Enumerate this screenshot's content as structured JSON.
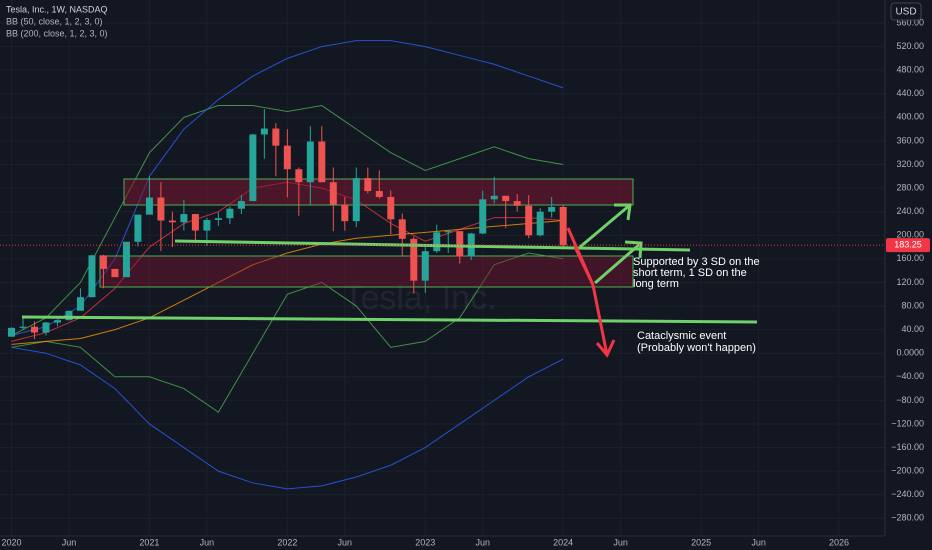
{
  "chart_data": {
    "type": "candlestick",
    "title": "Tesla, Inc., 1W, NASDAQ",
    "currency": "USD",
    "x": [
      "2020-01",
      "2020-02",
      "2020-03",
      "2020-04",
      "2020-05",
      "2020-06",
      "2020-07",
      "2020-08",
      "2020-09",
      "2020-10",
      "2020-11",
      "2020-12",
      "2021-01",
      "2021-02",
      "2021-03",
      "2021-04",
      "2021-05",
      "2021-06",
      "2021-07",
      "2021-08",
      "2021-09",
      "2021-10",
      "2021-11",
      "2021-12",
      "2022-01",
      "2022-02",
      "2022-03",
      "2022-04",
      "2022-05",
      "2022-06",
      "2022-07",
      "2022-08",
      "2022-09",
      "2022-10",
      "2022-11",
      "2022-12",
      "2023-01",
      "2023-02",
      "2023-03",
      "2023-04",
      "2023-05",
      "2023-06",
      "2023-07",
      "2023-08",
      "2023-09",
      "2023-10",
      "2023-11",
      "2023-12",
      "2024-01"
    ],
    "open": [
      28,
      43,
      45,
      35,
      52,
      56,
      72,
      95,
      166,
      143,
      129,
      189,
      235,
      264,
      225,
      222,
      236,
      208,
      226,
      229,
      245,
      258,
      371,
      381,
      352,
      312,
      290,
      359,
      290,
      252,
      224,
      297,
      275,
      265,
      227,
      194,
      123,
      173,
      205,
      207,
      164,
      203,
      261,
      267,
      258,
      250,
      200,
      240,
      248
    ],
    "high": [
      44,
      60,
      54,
      53,
      56,
      72,
      110,
      167,
      167,
      143,
      189,
      235,
      300,
      290,
      240,
      260,
      236,
      230,
      239,
      249,
      268,
      372,
      414,
      390,
      380,
      315,
      385,
      385,
      315,
      265,
      315,
      315,
      310,
      276,
      237,
      198,
      180,
      218,
      208,
      202,
      204,
      276,
      299,
      267,
      270,
      268,
      246,
      265,
      251
    ],
    "low": [
      28,
      40,
      24,
      30,
      46,
      56,
      72,
      95,
      110,
      130,
      130,
      181,
      236,
      173,
      180,
      208,
      187,
      182,
      216,
      219,
      236,
      258,
      330,
      300,
      264,
      233,
      252,
      290,
      207,
      208,
      214,
      271,
      262,
      202,
      166,
      101,
      102,
      170,
      170,
      152,
      158,
      202,
      254,
      212,
      240,
      195,
      198,
      230,
      180
    ],
    "close": [
      43,
      45,
      35,
      52,
      56,
      72,
      95,
      166,
      143,
      129,
      189,
      235,
      264,
      225,
      222,
      236,
      208,
      226,
      229,
      245,
      258,
      371,
      381,
      352,
      312,
      290,
      359,
      290,
      252,
      224,
      297,
      275,
      265,
      227,
      194,
      123,
      173,
      205,
      207,
      164,
      203,
      261,
      267,
      258,
      250,
      200,
      240,
      248,
      183
    ],
    "up_color": "#26a69a",
    "down_color": "#ef5350",
    "last_price": 183.25,
    "band_x": [
      "2020-01",
      "2020-04",
      "2020-07",
      "2020-10",
      "2021-01",
      "2021-04",
      "2021-07",
      "2021-10",
      "2022-01",
      "2022-04",
      "2022-07",
      "2022-10",
      "2023-01",
      "2023-04",
      "2023-07",
      "2023-10",
      "2024-01"
    ],
    "indicators": [
      {
        "name": "BB (50, close, 1, 2, 3, 0)",
        "lines": [
          {
            "color": "#4caf50",
            "values": [
              30,
              60,
              120,
              230,
              340,
              400,
              420,
              420,
              410,
              420,
              380,
              340,
              310,
              330,
              350,
              330,
              320
            ]
          },
          {
            "color": "#f23645",
            "values": [
              20,
              35,
              60,
              110,
              180,
              220,
              240,
              280,
              290,
              280,
              260,
              220,
              190,
              210,
              230,
              230,
              225
            ]
          },
          {
            "color": "#4caf50",
            "values": [
              10,
              20,
              10,
              -40,
              -40,
              -60,
              -100,
              0,
              100,
              120,
              80,
              10,
              20,
              60,
              150,
              170,
              160
            ]
          }
        ]
      },
      {
        "name": "BB (200, close, 1, 2, 3, 0)",
        "lines": [
          {
            "color": "#2962ff",
            "values": [
              30,
              45,
              80,
              160,
              300,
              380,
              430,
              470,
              500,
              520,
              530,
              530,
              520,
              505,
              490,
              470,
              450
            ]
          },
          {
            "color": "#ff9800",
            "values": [
              15,
              20,
              25,
              40,
              60,
              90,
              120,
              150,
              170,
              185,
              195,
              200,
              205,
              210,
              215,
              220,
              225
            ]
          },
          {
            "color": "#2962ff",
            "values": [
              10,
              0,
              -20,
              -60,
              -120,
              -160,
              -200,
              -220,
              -230,
              -225,
              -210,
              -190,
              -160,
              -120,
              -80,
              -40,
              -10
            ]
          }
        ]
      }
    ],
    "watermark": "Tesla, Inc.",
    "notes": [
      {
        "lines": [
          "Supported by 3 SD on the",
          "short term, 1 SD on the",
          "long term"
        ]
      },
      {
        "lines": [
          "Cataclysmic event",
          "(Probably won't happen)"
        ]
      }
    ],
    "xlim": [
      "2019-12",
      "2026-05"
    ],
    "xticks": [
      {
        "value": "2020-01",
        "label": "2020"
      },
      {
        "value": "2020-06",
        "label": "Jun"
      },
      {
        "value": "2021-01",
        "label": "2021"
      },
      {
        "value": "2021-06",
        "label": "Jun"
      },
      {
        "value": "2022-01",
        "label": "2022"
      },
      {
        "value": "2022-06",
        "label": "Jun"
      },
      {
        "value": "2023-01",
        "label": "2023"
      },
      {
        "value": "2023-06",
        "label": "Jun"
      },
      {
        "value": "2024-01",
        "label": "2024"
      },
      {
        "value": "2024-06",
        "label": "Jun"
      },
      {
        "value": "2025-01",
        "label": "2025"
      },
      {
        "value": "2025-06",
        "label": "Jun"
      },
      {
        "value": "2026-01",
        "label": "2026"
      }
    ],
    "ylim": [
      -310,
      599
    ],
    "yticks": [
      {
        "value": 560,
        "label": "560.00"
      },
      {
        "value": 520,
        "label": "520.00"
      },
      {
        "value": 480,
        "label": "480.00"
      },
      {
        "value": 440,
        "label": "440.00"
      },
      {
        "value": 400,
        "label": "400.00"
      },
      {
        "value": 360,
        "label": "360.00"
      },
      {
        "value": 320,
        "label": "320.00"
      },
      {
        "value": 280,
        "label": "280.00"
      },
      {
        "value": 240,
        "label": "240.00"
      },
      {
        "value": 200,
        "label": "200.00"
      },
      {
        "value": 160,
        "label": "160.00"
      },
      {
        "value": 120,
        "label": "120.00"
      },
      {
        "value": 80,
        "label": "80.00"
      },
      {
        "value": 40,
        "label": "40.00"
      },
      {
        "value": 0,
        "label": "0.0000"
      },
      {
        "value": -40,
        "label": "−40.00"
      },
      {
        "value": -80,
        "label": "−80.00"
      },
      {
        "value": -120,
        "label": "−120.00"
      },
      {
        "value": -160,
        "label": "−160.00"
      },
      {
        "value": -200,
        "label": "−200.00"
      },
      {
        "value": -240,
        "label": "−240.00"
      },
      {
        "value": -280,
        "label": "−280.00"
      }
    ],
    "grid": true
  }
}
